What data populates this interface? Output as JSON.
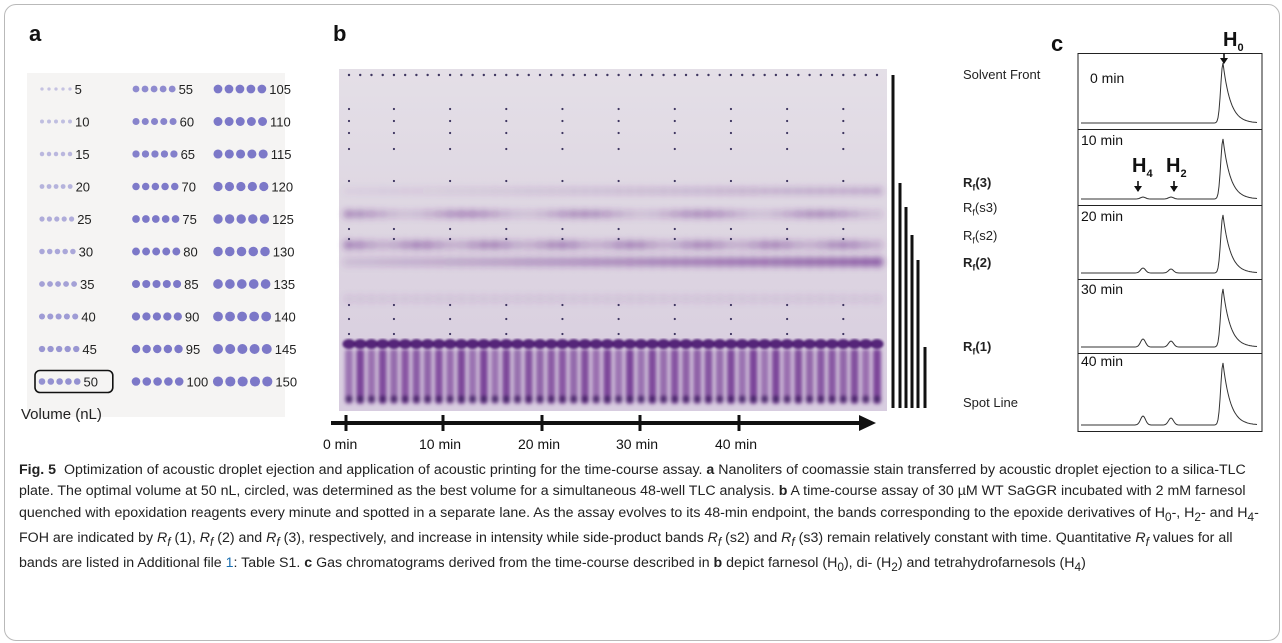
{
  "panels": {
    "a": "a",
    "b": "b",
    "c": "c"
  },
  "panel_a": {
    "columns": [
      [
        "5",
        "10",
        "15",
        "20",
        "25",
        "30",
        "35",
        "40",
        "45",
        "50"
      ],
      [
        "55",
        "60",
        "65",
        "70",
        "75",
        "80",
        "85",
        "90",
        "95",
        "100"
      ],
      [
        "105",
        "110",
        "115",
        "120",
        "125",
        "130",
        "135",
        "140",
        "145",
        "150"
      ]
    ],
    "highlighted": "50",
    "axis_label": "Volume (nL)",
    "dot_color": "#7c78c8"
  },
  "panel_b": {
    "lanes": 48,
    "rf_labels": {
      "solvent_front": "Solvent Front",
      "rf3": "(3)",
      "rfs3": "(s3)",
      "rfs2": "(s2)",
      "rf2": "(2)",
      "rf1": "(1)",
      "rf_prefix": "R",
      "rf_sub": "f",
      "spot_line": "Spot Line"
    },
    "time_ticks": [
      "0 min",
      "10 min",
      "20 min",
      "30 min",
      "40 min"
    ],
    "stain_color": "#6a2a8c"
  },
  "panel_c": {
    "traces": [
      "0 min",
      "10 min",
      "20 min",
      "30 min",
      "40 min"
    ],
    "peaks": {
      "h0": "0",
      "h4": "4",
      "h2": "2",
      "letter": "H"
    }
  },
  "caption": {
    "fig_label": "Fig. 5",
    "t1": "Optimization of acoustic droplet ejection and application of acoustic printing for the time-course assay.",
    "a_letter": "a",
    "t2": "Nanoliters of coomassie stain transferred by acoustic droplet ejection to a silica-TLC plate. The optimal volume at 50 nL, circled, was determined as the best volume for a simultaneous 48-well TLC analysis.",
    "b_letter": "b",
    "t3": "A time-course assay of 30 µM WT SaGGR incubated with 2 mM farnesol quenched with epoxidation reagents every minute and spotted in a separate lane. As the assay evolves to its 48-min endpoint, the bands corresponding to the epoxide derivatives of H",
    "t3b": "-, H",
    "t3c": "- and H",
    "t3d": "-FOH are indicated by",
    "t4a": "(1),",
    "t4b": "(2) and",
    "t4c": "(3), respectively, and increase in intensity while side-product bands",
    "t4d": "(s2) and",
    "t4e": "(s3) remain relatively constant with time. Quantitative",
    "t4f": "values for all bands are listed in Additional file",
    "file_num": "1",
    "t4g": ": Table S1.",
    "c_letter": "c",
    "t5": "Gas chromatograms derived from the time-course described in",
    "b_ref": "b",
    "t6": "depict farnesol (H",
    "t6b": "), di- (H",
    "t6c": ") and tetrahydrofarnesols (H",
    "t6d": ")",
    "sub0": "0",
    "sub2": "2",
    "sub4": "4",
    "R": "R",
    "f": "f"
  }
}
